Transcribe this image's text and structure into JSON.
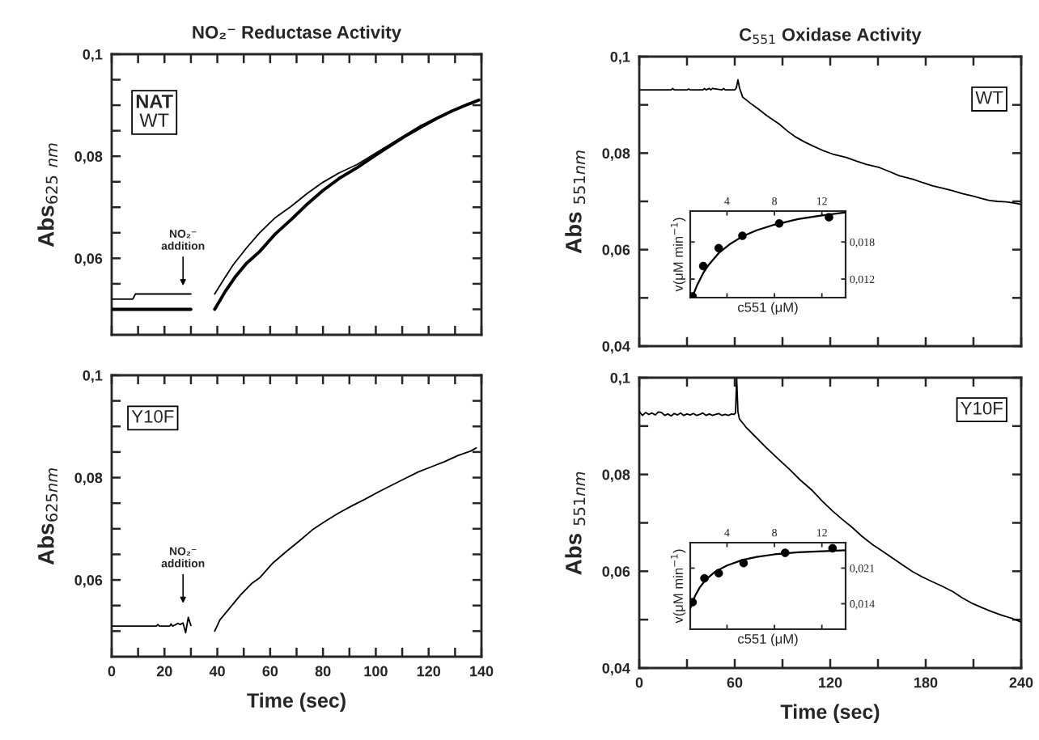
{
  "chart_data": [
    {
      "type": "line",
      "title": "NO₂⁻ Reductase Activity",
      "ylabel": "Abs$_{625}$ $_{nm}$",
      "xlim": [
        0,
        140
      ],
      "ylim": [
        0.045,
        0.1
      ],
      "xticks": [
        0,
        10,
        20,
        30,
        40,
        50,
        60,
        70,
        80,
        90,
        100,
        110,
        120,
        130,
        140
      ],
      "yticks": [
        {
          "value": 0.05,
          "label": null
        },
        {
          "value": 0.055,
          "label": null
        },
        {
          "value": 0.06,
          "label": "0,06"
        },
        {
          "value": 0.065,
          "label": null
        },
        {
          "value": 0.07,
          "label": null
        },
        {
          "value": 0.075,
          "label": null
        },
        {
          "value": 0.08,
          "label": "0,08"
        },
        {
          "value": 0.085,
          "label": null
        },
        {
          "value": 0.09,
          "label": null
        },
        {
          "value": 0.095,
          "label": null
        },
        {
          "value": 0.1,
          "label": "0,1"
        }
      ],
      "tick_labels": "y",
      "marker": "none",
      "line_style": "solid",
      "annotations": [
        "NAT",
        "WT",
        "NO₂⁻\naddition"
      ],
      "series": [
        {
          "color": "#000000",
          "x": [
            0,
            30,
            35,
            39,
            43,
            47,
            51,
            56,
            62,
            68,
            74,
            80,
            86,
            93,
            99,
            105,
            111,
            117,
            123,
            129,
            135,
            139
          ],
          "values": [
            0.05,
            0.05,
            null,
            0.05,
            0.0535,
            0.0565,
            0.059,
            0.0613,
            0.0648,
            0.0676,
            0.0706,
            0.0733,
            0.0756,
            0.0778,
            0.0799,
            0.0819,
            0.0839,
            0.0857,
            0.0874,
            0.0889,
            0.0902,
            0.091
          ]
        },
        {
          "color": "#000000",
          "x": [
            0,
            8,
            9,
            30,
            35,
            39,
            42,
            46,
            51,
            56,
            62,
            68,
            74,
            80,
            86,
            93,
            99,
            105,
            111,
            117,
            123,
            129,
            135,
            139
          ],
          "values": [
            0.052,
            0.052,
            0.053,
            0.053,
            null,
            0.053,
            0.0555,
            0.0587,
            0.062,
            0.065,
            0.068,
            0.0702,
            0.0727,
            0.0749,
            0.0767,
            0.0784,
            0.0803,
            0.0822,
            0.0841,
            0.086,
            0.0875,
            0.0889,
            0.0902,
            0.091
          ]
        }
      ]
    },
    {
      "type": "line",
      "title": "C$_{551}$ Oxidase Activity",
      "ylabel": "Abs $_{551nm}$",
      "xlim": [
        0,
        240
      ],
      "ylim": [
        0.04,
        0.1
      ],
      "xticks": [
        0,
        30,
        60,
        90,
        120,
        150,
        180,
        210,
        240
      ],
      "yticks": [
        {
          "value": 0.04,
          "label": "0,04"
        },
        {
          "value": 0.05,
          "label": null
        },
        {
          "value": 0.06,
          "label": "0,06"
        },
        {
          "value": 0.07,
          "label": null
        },
        {
          "value": 0.08,
          "label": "0,08"
        },
        {
          "value": 0.09,
          "label": null
        },
        {
          "value": 0.1,
          "label": "0,1"
        }
      ],
      "tick_labels": "y",
      "marker": "none",
      "line_style": "solid",
      "annotations": [
        "WT"
      ],
      "series": [
        {
          "color": "#000000",
          "x": [
            0,
            20,
            21,
            22,
            30,
            31,
            32,
            40,
            41,
            42,
            44,
            45,
            46,
            52,
            53,
            54,
            60,
            61,
            62,
            63,
            65,
            70,
            75,
            80,
            88,
            93,
            98.5,
            104,
            109,
            115,
            121.6,
            130,
            136,
            142.5,
            151,
            157,
            163.5,
            172,
            178,
            184.5,
            191,
            197,
            203,
            209.6,
            215,
            220,
            225,
            230.6,
            235,
            240
          ],
          "values": [
            0.0931,
            0.0931,
            0.0934,
            0.0931,
            0.0931,
            0.0933,
            0.0931,
            0.0931,
            0.0934,
            0.0931,
            0.0934,
            0.0931,
            0.0934,
            0.0931,
            0.0934,
            0.0931,
            0.0931,
            0.0935,
            0.0952,
            0.0935,
            0.0916,
            0.0903,
            0.0891,
            0.0878,
            0.086,
            0.0846,
            0.0833,
            0.0823,
            0.0815,
            0.0806,
            0.0798,
            0.0791,
            0.0784,
            0.0777,
            0.077,
            0.0762,
            0.0753,
            0.0746,
            0.0739,
            0.0732,
            0.0727,
            0.0722,
            0.0716,
            0.0711,
            0.0706,
            0.0702,
            0.07,
            0.0699,
            0.0697,
            0.0694
          ]
        }
      ]
    },
    {
      "type": "scatter",
      "xlabel": "c551 (μM)",
      "ylabel": "v(μM min$^{−1}$)",
      "xlim": [
        0.9,
        14
      ],
      "ylim": [
        0.009,
        0.023
      ],
      "xticks": [
        4,
        8,
        12
      ],
      "yticks": [
        {
          "value": 0.012,
          "label": "0,012"
        },
        {
          "value": 0.018,
          "label": "0,018"
        }
      ],
      "marker": "circle",
      "series": [
        {
          "type": "scatter",
          "color": "#000000",
          "x": [
            1.1,
            2.0,
            3.3,
            5.3,
            8.4,
            12.6
          ],
          "values": [
            0.0092,
            0.0141,
            0.017,
            0.019,
            0.021,
            0.022
          ]
        },
        {
          "type": "line",
          "marker": "none",
          "color": "#000000",
          "x": [
            1.1,
            1.5,
            2,
            2.5,
            3.3,
            4.2,
            5.3,
            6.5,
            8,
            10,
            12,
            14
          ],
          "values": [
            0.0092,
            0.0111,
            0.013,
            0.0144,
            0.0162,
            0.0176,
            0.0189,
            0.0199,
            0.0208,
            0.0217,
            0.0223,
            0.0228
          ]
        }
      ]
    },
    {
      "type": "line",
      "ylabel": "Abs$_{625nm}$",
      "xlabel": "Time (sec)",
      "xlim": [
        0,
        140
      ],
      "ylim": [
        0.045,
        0.1
      ],
      "xticks": [
        0,
        {
          "value": 10,
          "label": null
        },
        20,
        {
          "value": 30,
          "label": null
        },
        40,
        {
          "value": 50,
          "label": null
        },
        60,
        {
          "value": 70,
          "label": null
        },
        80,
        {
          "value": 90,
          "label": null
        },
        100,
        {
          "value": 110,
          "label": null
        },
        120,
        {
          "value": 130,
          "label": null
        },
        140
      ],
      "yticks": [
        {
          "value": 0.05,
          "label": null
        },
        {
          "value": 0.055,
          "label": null
        },
        {
          "value": 0.06,
          "label": "0,06"
        },
        {
          "value": 0.065,
          "label": null
        },
        {
          "value": 0.07,
          "label": null
        },
        {
          "value": 0.075,
          "label": null
        },
        {
          "value": 0.08,
          "label": "0,08"
        },
        {
          "value": 0.085,
          "label": null
        },
        {
          "value": 0.09,
          "label": null
        },
        {
          "value": 0.095,
          "label": null
        },
        {
          "value": 0.1,
          "label": "0,1"
        }
      ],
      "marker": "none",
      "line_style": "solid",
      "annotations": [
        "Y10F",
        "NO₂⁻\naddition"
      ],
      "series": [
        {
          "color": "#000000",
          "x": [
            0,
            17,
            17.5,
            18,
            22,
            22.5,
            23,
            24,
            25,
            26,
            27,
            28,
            28.5,
            29,
            30,
            35,
            39,
            41,
            45,
            49,
            53,
            56,
            61,
            66,
            71,
            76,
            81,
            86,
            91,
            96,
            101,
            106,
            111,
            116,
            121,
            126,
            131,
            136,
            138
          ],
          "values": [
            0.051,
            0.051,
            0.0513,
            0.051,
            0.051,
            0.0514,
            0.051,
            0.0512,
            0.0515,
            0.0513,
            0.0516,
            0.0497,
            0.0512,
            0.0527,
            0.0511,
            null,
            0.05,
            0.0522,
            0.0547,
            0.0572,
            0.0593,
            0.0604,
            0.0633,
            0.0655,
            0.0676,
            0.0698,
            0.0715,
            0.0731,
            0.0745,
            0.0758,
            0.0772,
            0.0785,
            0.0798,
            0.0811,
            0.0821,
            0.0831,
            0.0843,
            0.0852,
            0.0858
          ]
        }
      ]
    },
    {
      "type": "line",
      "ylabel": "Abs $_{551nm}$",
      "xlabel": "Time (sec)",
      "xlim": [
        0,
        240
      ],
      "ylim": [
        0.04,
        0.1
      ],
      "xticks": [
        0,
        {
          "value": 30,
          "label": null
        },
        60,
        {
          "value": 90,
          "label": null
        },
        120,
        {
          "value": 150,
          "label": null
        },
        180,
        {
          "value": 210,
          "label": null
        },
        240
      ],
      "yticks": [
        {
          "value": 0.04,
          "label": "0,04"
        },
        {
          "value": 0.05,
          "label": null
        },
        {
          "value": 0.06,
          "label": "0,06"
        },
        {
          "value": 0.07,
          "label": null
        },
        {
          "value": 0.08,
          "label": "0,08"
        },
        {
          "value": 0.09,
          "label": null
        },
        {
          "value": 0.1,
          "label": "0,1"
        }
      ],
      "marker": "none",
      "line_style": "solid",
      "annotations": [
        "Y10F"
      ],
      "series": [
        {
          "color": "#000000",
          "x": [
            0,
            2,
            4,
            6,
            8,
            10,
            12,
            14,
            16,
            18,
            20,
            22,
            24,
            26,
            28,
            30,
            32,
            34,
            36,
            38,
            40,
            42,
            44,
            46,
            48,
            50,
            52,
            54,
            56,
            58,
            59.5,
            60.5,
            61.2,
            62,
            62.9,
            67,
            73,
            79.6,
            87,
            94.3,
            101,
            109,
            115,
            121.6,
            128,
            134,
            140,
            146.7,
            153,
            159.3,
            166,
            171.9,
            178,
            184.4,
            191,
            197,
            203,
            209.6,
            216,
            222,
            228,
            234.7,
            240
          ],
          "values": [
            0.093,
            0.0922,
            0.0928,
            0.0924,
            0.0927,
            0.0923,
            0.0929,
            0.0928,
            0.0922,
            0.0925,
            0.0921,
            0.0926,
            0.0923,
            0.0927,
            0.0922,
            0.0925,
            0.0923,
            0.0926,
            0.0922,
            0.0924,
            0.0927,
            0.0922,
            0.0925,
            0.0922,
            0.0924,
            0.0926,
            0.0922,
            0.0924,
            0.0922,
            0.0925,
            0.0924,
            0.0927,
            0.1,
            0.093,
            0.0915,
            0.0898,
            0.0878,
            0.0856,
            0.0833,
            0.0811,
            0.0789,
            0.0766,
            0.0745,
            0.0724,
            0.0706,
            0.069,
            0.0672,
            0.0655,
            0.0641,
            0.0627,
            0.0612,
            0.0599,
            0.0588,
            0.0578,
            0.0568,
            0.0558,
            0.0545,
            0.0533,
            0.0524,
            0.0516,
            0.0509,
            0.0502,
            0.0495
          ]
        }
      ]
    },
    {
      "type": "scatter",
      "xlabel": "c551 (μM)",
      "ylabel": "v(μM min$^{−1}$)",
      "xlim": [
        0.9,
        14
      ],
      "ylim": [
        0.009,
        0.026
      ],
      "xticks": [
        4,
        8,
        12
      ],
      "yticks": [
        {
          "value": 0.014,
          "label": "0,014"
        },
        {
          "value": 0.021,
          "label": "0,021"
        }
      ],
      "marker": "circle",
      "series": [
        {
          "type": "scatter",
          "color": "#000000",
          "x": [
            1.1,
            2.1,
            3.3,
            5.4,
            8.9,
            12.9
          ],
          "values": [
            0.0143,
            0.019,
            0.02,
            0.022,
            0.024,
            0.0249
          ]
        },
        {
          "type": "line",
          "marker": "none",
          "color": "#000000",
          "x": [
            0.9,
            1.3,
            1.7,
            2.2,
            3,
            4,
            5.3,
            6.5,
            8,
            10,
            12,
            14
          ],
          "values": [
            0.0131,
            0.0155,
            0.0172,
            0.0187,
            0.0203,
            0.0215,
            0.0226,
            0.0232,
            0.0237,
            0.0241,
            0.0243,
            0.0245
          ]
        }
      ]
    }
  ]
}
